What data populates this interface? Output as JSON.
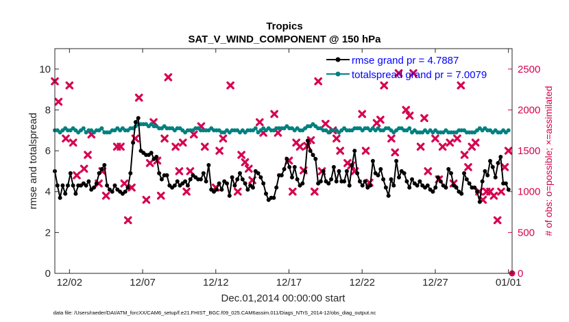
{
  "chart_data": {
    "type": "line",
    "title": "Tropics",
    "subtitle": "SAT_V_WIND_COMPONENT @ 150 hPa",
    "xlabel": "Dec.01,2014 00:00:00 start",
    "ylabel": "rmse and totalspread",
    "y2label": "# of obs: o=possible; ×=assimilated",
    "xlim": [
      0,
      31.25
    ],
    "ylim": [
      0,
      11
    ],
    "y2lim": [
      0,
      2750
    ],
    "x_ticks": [
      1,
      6,
      11,
      16,
      21,
      26,
      31
    ],
    "x_tick_labels": [
      "12/02",
      "12/07",
      "12/12",
      "12/17",
      "12/22",
      "12/27",
      "01/01"
    ],
    "y_ticks": [
      0,
      2,
      4,
      6,
      8,
      10
    ],
    "y_tick_labels": [
      "0",
      "2",
      "4",
      "6",
      "8",
      "10"
    ],
    "y2_ticks": [
      0,
      500,
      1000,
      1500,
      2000,
      2500
    ],
    "y2_tick_labels": [
      "0",
      "500",
      "1000",
      "1500",
      "2000",
      "2500"
    ],
    "series": [
      {
        "name": "rmse grand pr = 4.7887",
        "color": "#000000",
        "marker": "circle",
        "axis": "left",
        "values": [
          5.0,
          4.3,
          3.7,
          4.3,
          3.9,
          4.3,
          4.9,
          4.3,
          3.9,
          4.3,
          4.3,
          4.4,
          4.3,
          4.5,
          4.1,
          4.2,
          4.4,
          4.9,
          5.1,
          5.3,
          4.3,
          4.1,
          4.0,
          4.3,
          4.1,
          4.0,
          3.9,
          4.0,
          4.2,
          4.9,
          6.4,
          7.4,
          7.6,
          6.0,
          5.9,
          5.8,
          5.8,
          5.9,
          5.6,
          5.7,
          4.9,
          4.6,
          4.8,
          4.8,
          4.3,
          4.2,
          4.3,
          4.5,
          4.3,
          4.4,
          4.5,
          4.3,
          4.6,
          4.8,
          4.7,
          4.6,
          4.6,
          4.9,
          4.5,
          5.3,
          4.1,
          4.0,
          4.1,
          4.4,
          4.1,
          4.5,
          4.4,
          3.8,
          4.7,
          4.3,
          4.6,
          4.9,
          4.6,
          4.4,
          4.1,
          4.3,
          4.2,
          5.0,
          4.9,
          4.7,
          4.4,
          3.9,
          3.6,
          3.7,
          3.7,
          4.2,
          4.8,
          4.8,
          5.1,
          5.6,
          5.2,
          4.7,
          5.2,
          4.6,
          4.3,
          4.4,
          5.0,
          6.5,
          6.0,
          5.8,
          5.6,
          4.4,
          4.5,
          5.0,
          4.5,
          4.4,
          4.6,
          5.2,
          4.5,
          5.0,
          4.5,
          4.5,
          5.0,
          4.3,
          5.3,
          6.0,
          4.9,
          4.5,
          4.3,
          4.5,
          4.2,
          4.3,
          5.5,
          4.9,
          4.8,
          5.1,
          4.6,
          4.2,
          3.8,
          4.6,
          4.3,
          5.5,
          4.7,
          5.0,
          4.9,
          4.5,
          4.2,
          4.6,
          4.4,
          4.3,
          4.5,
          4.3,
          4.2,
          4.3,
          4.1,
          4.0,
          4.2,
          4.7,
          4.5,
          4.3,
          4.2,
          5.1,
          4.9,
          4.3,
          4.2,
          4.0,
          3.9,
          4.9,
          4.6,
          4.4,
          4.2,
          4.2,
          4.0,
          3.5,
          4.5,
          5.0,
          4.8,
          5.5,
          5.2,
          4.7,
          5.4,
          5.7,
          4.4,
          4.4,
          4.1
        ]
      },
      {
        "name": "totalspread grand pr = 7.0079",
        "color": "#008080",
        "marker": "circle",
        "axis": "left",
        "values": [
          7.0,
          7.0,
          6.9,
          7.0,
          7.1,
          7.0,
          7.0,
          7.1,
          7.0,
          6.9,
          7.0,
          7.1,
          6.9,
          7.0,
          7.0,
          6.9,
          7.0,
          7.0,
          7.1,
          6.9,
          6.9,
          6.9,
          7.0,
          7.0,
          7.1,
          7.0,
          7.1,
          7.0,
          7.0,
          7.1,
          7.1,
          7.2,
          7.3,
          7.3,
          7.3,
          7.3,
          7.2,
          7.3,
          7.2,
          7.2,
          7.1,
          7.1,
          7.2,
          7.1,
          7.1,
          7.1,
          7.0,
          7.1,
          7.1,
          7.0,
          6.9,
          7.0,
          7.0,
          7.0,
          7.1,
          7.1,
          7.0,
          7.0,
          7.0,
          7.0,
          7.1,
          7.0,
          7.0,
          7.0,
          6.9,
          6.9,
          7.0,
          6.9,
          7.0,
          7.0,
          7.0,
          6.9,
          7.0,
          6.9,
          7.0,
          7.0,
          7.0,
          7.1,
          6.9,
          7.0,
          7.1,
          7.0,
          7.1,
          7.0,
          7.0,
          7.1,
          7.1,
          7.1,
          7.1,
          7.2,
          7.1,
          7.1,
          7.0,
          7.1,
          7.0,
          7.0,
          7.1,
          7.2,
          7.2,
          7.3,
          7.2,
          7.1,
          7.1,
          7.0,
          7.0,
          6.9,
          7.0,
          7.0,
          7.0,
          6.9,
          7.0,
          7.1,
          7.0,
          7.0,
          7.0,
          7.1,
          7.1,
          7.1,
          7.0,
          7.1,
          7.1,
          7.0,
          7.1,
          7.0,
          7.1,
          7.0,
          7.0,
          7.1,
          7.1,
          7.0,
          6.9,
          7.0,
          7.1,
          7.1,
          7.0,
          7.0,
          7.1,
          6.9,
          7.0,
          6.9,
          6.9,
          6.9,
          7.0,
          6.9,
          7.0,
          6.9,
          7.0,
          6.9,
          6.9,
          6.9,
          7.0,
          6.9,
          6.9,
          6.9,
          6.9,
          7.0,
          7.0,
          7.0,
          6.9,
          6.9,
          6.9,
          6.9,
          7.0,
          7.1,
          7.0,
          7.1,
          7.0,
          7.0,
          6.9,
          7.0,
          6.9,
          6.9,
          7.0,
          6.9,
          7.0
        ]
      },
      {
        "name": "observations",
        "color": "#d6004f",
        "marker": "x",
        "axis": "right",
        "x": [
          0.0,
          0.25,
          0.75,
          1.0,
          1.25,
          1.5,
          2.0,
          2.25,
          2.5,
          3.0,
          3.25,
          3.5,
          4.25,
          4.5,
          4.75,
          5.0,
          5.25,
          5.5,
          5.75,
          6.25,
          6.5,
          6.75,
          7.0,
          7.25,
          7.5,
          7.75,
          8.25,
          8.5,
          8.75,
          9.0,
          9.25,
          9.5,
          10.0,
          10.25,
          11.0,
          11.25,
          11.5,
          12.0,
          12.5,
          12.75,
          13.0,
          13.25,
          13.5,
          14.0,
          14.25,
          15.0,
          15.25,
          16.0,
          16.25,
          16.5,
          16.75,
          17.0,
          17.25,
          17.5,
          17.75,
          18.0,
          18.25,
          18.5,
          19.0,
          19.25,
          19.5,
          20.0,
          20.25,
          20.5,
          21.0,
          21.25,
          21.5,
          22.0,
          22.25,
          22.5,
          23.0,
          23.25,
          23.5,
          24.0,
          24.25,
          24.5,
          25.0,
          25.25,
          25.5,
          26.0,
          26.25,
          26.5,
          27.0,
          27.25,
          27.5,
          27.75,
          28.0,
          28.25,
          28.5,
          28.75,
          29.0,
          29.25,
          29.5,
          29.75,
          30.0,
          30.25,
          30.5,
          30.75,
          31.0
        ],
        "values": [
          2350,
          2100,
          1650,
          2300,
          1600,
          1200,
          1280,
          1450,
          1700,
          1100,
          1250,
          950,
          1550,
          1550,
          1100,
          650,
          1050,
          1650,
          2150,
          900,
          1350,
          1850,
          1380,
          950,
          1650,
          2400,
          1550,
          1250,
          1600,
          1000,
          1250,
          1700,
          1800,
          1550,
          1050,
          1500,
          1650,
          2300,
          1000,
          1450,
          1360,
          1280,
          1140,
          1850,
          1720,
          1950,
          1720,
          1380,
          1000,
          1600,
          1550,
          1260,
          1560,
          1630,
          1000,
          2350,
          1250,
          1830,
          1750,
          1650,
          1500,
          1350,
          1320,
          1250,
          1950,
          1500,
          1110,
          1840,
          1880,
          2300,
          1650,
          1480,
          2450,
          2000,
          1930,
          2450,
          1550,
          1900,
          1250,
          1650,
          1150,
          1550,
          1600,
          1100,
          1650,
          2300,
          1450,
          1300,
          1550,
          1600,
          1000,
          900,
          1000,
          1000,
          950,
          650,
          1000,
          1300,
          1500
        ]
      }
    ],
    "legend": [
      "rmse grand pr = 4.7887",
      "totalspread grand pr = 7.0079"
    ],
    "legend_position": "top-right",
    "grid": false,
    "footnote": "data file: /Users/raeder/DAI/ATM_forcXX/CAM6_setup/f.e21.FHIST_BGC.f09_025.CAM6assim.011/Diags_NTrS_2014-12/obs_diag_output.nc"
  }
}
